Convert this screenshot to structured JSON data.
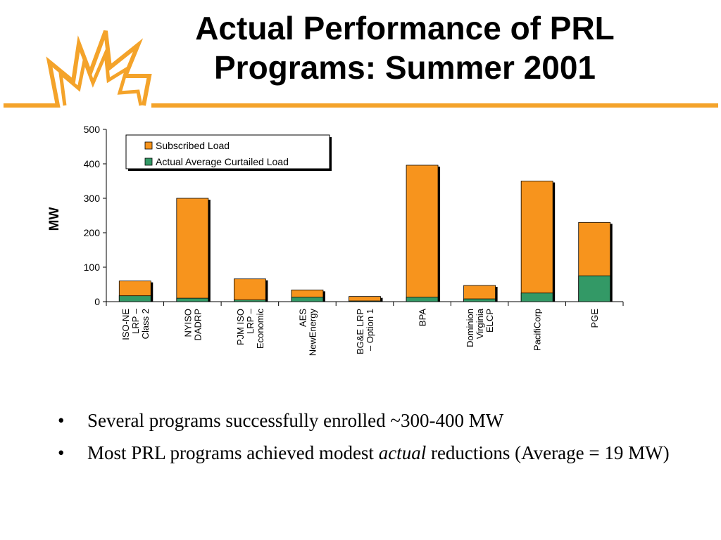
{
  "slide": {
    "title": "Actual Performance of PRL Programs: Summer 2001",
    "accent_color": "#f4a32a",
    "logo_icon": "starburst-icon"
  },
  "bullets": [
    {
      "marker": "•",
      "parts": [
        "Several programs successfully enrolled ~300-400 MW"
      ]
    },
    {
      "marker": "•",
      "parts": [
        "Most PRL programs achieved modest ",
        "actual",
        " reductions (Average = 19 MW)"
      ]
    }
  ],
  "chart_data": {
    "type": "bar",
    "stacked": true,
    "ylabel": "MW",
    "xlabel": "",
    "ylim": [
      0,
      500
    ],
    "yticks": [
      0,
      100,
      200,
      300,
      400,
      500
    ],
    "grid": false,
    "legend_position": "top-left",
    "categories": [
      [
        "ISO-NE",
        "LRP –",
        "Class 2"
      ],
      [
        "NYISO",
        "DADRP"
      ],
      [
        "PJM ISO",
        "LRP –",
        "Economic"
      ],
      [
        "AES",
        "NewEnergy"
      ],
      [
        "BG&E LRP",
        "– Option 1"
      ],
      [
        "BPA"
      ],
      [
        "Dominion",
        "Virginia",
        "ELCP"
      ],
      [
        "PacifiCorp"
      ],
      [
        "PGE"
      ]
    ],
    "series": [
      {
        "name": "Subscribed Load",
        "color": "#f7941d",
        "values": [
          60,
          300,
          66,
          34,
          15,
          396,
          47,
          350,
          230
        ]
      },
      {
        "name": "Actual Average Curtailed Load",
        "color": "#339966",
        "values": [
          17,
          10,
          5,
          13,
          2,
          13,
          8,
          25,
          75
        ]
      }
    ]
  }
}
